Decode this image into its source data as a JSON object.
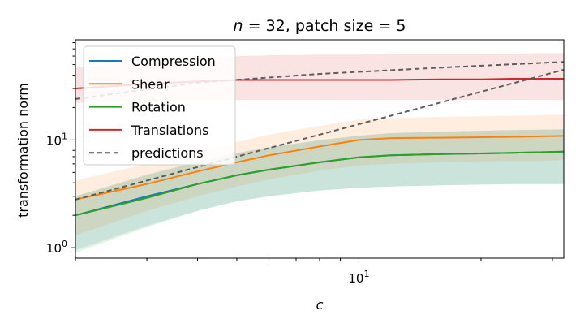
{
  "chart_data": {
    "type": "line",
    "title": "n = 32, patch size = 5",
    "title_parts": {
      "prefix": "n",
      "middle": " = 32, patch size ",
      "suffix": "= 5"
    },
    "xlabel": "c",
    "ylabel": "transformation norm",
    "xscale": "log",
    "yscale": "log",
    "xlim": [
      2,
      32
    ],
    "ylim": [
      0.8,
      85
    ],
    "x_tick_labels": [
      {
        "value": 10,
        "base": "10",
        "exp": "1"
      }
    ],
    "y_tick_labels": [
      {
        "value": 1,
        "base": "10",
        "exp": "0"
      },
      {
        "value": 10,
        "base": "10",
        "exp": "1"
      }
    ],
    "x_minor_ticks": [
      2,
      3,
      4,
      5,
      6,
      7,
      8,
      9,
      20,
      30
    ],
    "y_minor_ticks": [
      2,
      3,
      4,
      5,
      6,
      7,
      8,
      9,
      20,
      30,
      40,
      50,
      60,
      70,
      80
    ],
    "legend_position": "top-left",
    "series": [
      {
        "name": "Compression",
        "color": "#1f77b4",
        "style": "solid",
        "x": [
          2,
          3,
          4,
          5,
          6,
          8,
          10,
          12,
          16,
          20,
          24,
          28,
          32
        ],
        "y": [
          2.0,
          3.0,
          3.9,
          4.7,
          5.3,
          6.2,
          6.9,
          7.2,
          7.4,
          7.5,
          7.6,
          7.7,
          7.8
        ],
        "band_low": [
          0.95,
          1.6,
          2.2,
          2.7,
          3.0,
          3.4,
          3.6,
          3.7,
          3.8,
          3.85,
          3.9,
          3.9,
          3.9
        ],
        "band_high": [
          3.0,
          4.8,
          6.3,
          7.6,
          8.6,
          10.0,
          11.0,
          11.6,
          12.0,
          12.2,
          12.4,
          12.5,
          12.6
        ]
      },
      {
        "name": "Shear",
        "color": "#ff7f0e",
        "style": "solid",
        "x": [
          2,
          3,
          4,
          5,
          6,
          8,
          10,
          12,
          16,
          20,
          24,
          28,
          32
        ],
        "y": [
          2.8,
          3.9,
          5.1,
          6.2,
          7.2,
          8.7,
          10.0,
          10.4,
          10.5,
          10.6,
          10.7,
          10.8,
          10.9
        ],
        "band_low": [
          1.3,
          2.2,
          3.0,
          3.7,
          4.3,
          5.2,
          5.8,
          6.0,
          6.2,
          6.3,
          6.4,
          6.4,
          6.5
        ],
        "band_high": [
          4.2,
          6.0,
          7.8,
          9.6,
          11.2,
          13.5,
          15.4,
          16.0,
          16.4,
          16.6,
          16.8,
          17.0,
          17.2
        ]
      },
      {
        "name": "Rotation",
        "color": "#2ca02c",
        "style": "solid",
        "x": [
          2,
          3,
          4,
          5,
          6,
          8,
          10,
          12,
          16,
          20,
          24,
          28,
          32
        ],
        "y": [
          2.0,
          2.9,
          3.9,
          4.7,
          5.3,
          6.2,
          6.9,
          7.2,
          7.4,
          7.5,
          7.6,
          7.7,
          7.8
        ],
        "band_low": [
          0.9,
          1.55,
          2.2,
          2.7,
          3.0,
          3.4,
          3.6,
          3.7,
          3.8,
          3.85,
          3.9,
          3.9,
          3.9
        ],
        "band_high": [
          3.0,
          4.7,
          6.2,
          7.5,
          8.5,
          9.9,
          10.9,
          11.5,
          11.9,
          12.1,
          12.3,
          12.4,
          12.5
        ]
      },
      {
        "name": "Translations",
        "color": "#d62728",
        "style": "solid",
        "x": [
          2,
          3,
          4,
          5,
          6,
          8,
          10,
          12,
          16,
          20,
          24,
          28,
          32
        ],
        "y": [
          30,
          33,
          35,
          36,
          36,
          36,
          36,
          36,
          36.5,
          36.5,
          37,
          37,
          37
        ],
        "band_low": [
          22,
          23,
          23.5,
          23.5,
          23.5,
          23.5,
          23.5,
          23.5,
          23.5,
          23.5,
          23.5,
          23.5,
          23.5
        ],
        "band_high": [
          47,
          54,
          58,
          60,
          61,
          62,
          62,
          63,
          63,
          63,
          63,
          64,
          64
        ]
      },
      {
        "name": "predictions",
        "color": "#555555",
        "style": "dashed",
        "x": [
          2,
          4,
          8,
          16,
          32
        ],
        "y": [
          2.8,
          5.6,
          11.2,
          22.4,
          44.8
        ]
      },
      {
        "name": "predictions",
        "color": "#555555",
        "style": "dashed",
        "show_in_legend": false,
        "x": [
          2,
          4,
          8,
          16,
          32
        ],
        "y": [
          24,
          34,
          41,
          47,
          53
        ]
      }
    ]
  }
}
